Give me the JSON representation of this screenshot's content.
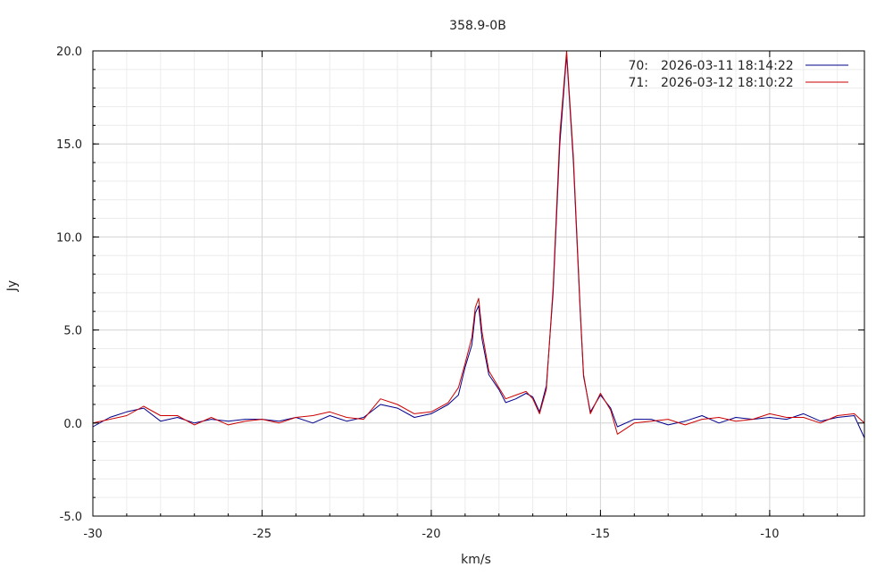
{
  "chart_data": {
    "type": "line",
    "title": "358.9-0B",
    "xlabel": "km/s",
    "ylabel": "Jy",
    "xlim": [
      -30,
      -7.2
    ],
    "ylim": [
      -5,
      20
    ],
    "x_ticks": [
      -30,
      -25,
      -20,
      -15,
      -10
    ],
    "x_tick_labels": [
      "-30",
      "-25",
      "-20",
      "-15",
      "-10"
    ],
    "y_ticks": [
      -5,
      0,
      5,
      10,
      15,
      20
    ],
    "y_tick_labels": [
      "-5.0",
      "0.0",
      "5.0",
      "10.0",
      "15.0",
      "20.0"
    ],
    "grid": true,
    "legend_position": "top-right",
    "series": [
      {
        "name": "2026-03-11 18:14:22",
        "index_label": "70:",
        "color": "#00008b",
        "points": [
          [
            -30.0,
            -0.2
          ],
          [
            -29.5,
            0.3
          ],
          [
            -29.0,
            0.6
          ],
          [
            -28.5,
            0.8
          ],
          [
            -28.0,
            0.1
          ],
          [
            -27.5,
            0.3
          ],
          [
            -27.0,
            0.0
          ],
          [
            -26.5,
            0.2
          ],
          [
            -26.0,
            0.1
          ],
          [
            -25.5,
            0.2
          ],
          [
            -25.0,
            0.2
          ],
          [
            -24.5,
            0.1
          ],
          [
            -24.0,
            0.3
          ],
          [
            -23.5,
            0.0
          ],
          [
            -23.0,
            0.4
          ],
          [
            -22.5,
            0.1
          ],
          [
            -22.0,
            0.3
          ],
          [
            -21.5,
            1.0
          ],
          [
            -21.0,
            0.8
          ],
          [
            -20.5,
            0.3
          ],
          [
            -20.0,
            0.5
          ],
          [
            -19.5,
            1.0
          ],
          [
            -19.2,
            1.5
          ],
          [
            -19.0,
            3.0
          ],
          [
            -18.8,
            4.2
          ],
          [
            -18.7,
            5.9
          ],
          [
            -18.6,
            6.3
          ],
          [
            -18.5,
            4.5
          ],
          [
            -18.3,
            2.6
          ],
          [
            -18.0,
            1.8
          ],
          [
            -17.8,
            1.1
          ],
          [
            -17.5,
            1.3
          ],
          [
            -17.2,
            1.6
          ],
          [
            -17.0,
            1.4
          ],
          [
            -16.8,
            0.6
          ],
          [
            -16.6,
            2.0
          ],
          [
            -16.4,
            7.0
          ],
          [
            -16.2,
            15.0
          ],
          [
            -16.0,
            19.8
          ],
          [
            -15.8,
            14.0
          ],
          [
            -15.6,
            6.0
          ],
          [
            -15.5,
            2.5
          ],
          [
            -15.3,
            0.6
          ],
          [
            -15.0,
            1.5
          ],
          [
            -14.7,
            0.8
          ],
          [
            -14.5,
            -0.2
          ],
          [
            -14.0,
            0.2
          ],
          [
            -13.5,
            0.2
          ],
          [
            -13.0,
            -0.1
          ],
          [
            -12.5,
            0.1
          ],
          [
            -12.0,
            0.4
          ],
          [
            -11.5,
            0.0
          ],
          [
            -11.0,
            0.3
          ],
          [
            -10.5,
            0.2
          ],
          [
            -10.0,
            0.3
          ],
          [
            -9.5,
            0.2
          ],
          [
            -9.0,
            0.5
          ],
          [
            -8.5,
            0.1
          ],
          [
            -8.0,
            0.3
          ],
          [
            -7.5,
            0.4
          ],
          [
            -7.2,
            -0.8
          ]
        ]
      },
      {
        "name": "2026-03-12 18:10:22",
        "index_label": "71:",
        "color": "#cc0000",
        "points": [
          [
            -30.0,
            0.0
          ],
          [
            -29.5,
            0.2
          ],
          [
            -29.0,
            0.4
          ],
          [
            -28.5,
            0.9
          ],
          [
            -28.0,
            0.4
          ],
          [
            -27.5,
            0.4
          ],
          [
            -27.0,
            -0.1
          ],
          [
            -26.5,
            0.3
          ],
          [
            -26.0,
            -0.1
          ],
          [
            -25.5,
            0.1
          ],
          [
            -25.0,
            0.2
          ],
          [
            -24.5,
            0.0
          ],
          [
            -24.0,
            0.3
          ],
          [
            -23.5,
            0.4
          ],
          [
            -23.0,
            0.6
          ],
          [
            -22.5,
            0.3
          ],
          [
            -22.0,
            0.2
          ],
          [
            -21.5,
            1.3
          ],
          [
            -21.0,
            1.0
          ],
          [
            -20.5,
            0.5
          ],
          [
            -20.0,
            0.6
          ],
          [
            -19.5,
            1.1
          ],
          [
            -19.2,
            1.9
          ],
          [
            -19.0,
            3.2
          ],
          [
            -18.8,
            4.6
          ],
          [
            -18.7,
            6.2
          ],
          [
            -18.6,
            6.7
          ],
          [
            -18.5,
            4.9
          ],
          [
            -18.3,
            2.8
          ],
          [
            -18.0,
            1.9
          ],
          [
            -17.8,
            1.3
          ],
          [
            -17.5,
            1.5
          ],
          [
            -17.2,
            1.7
          ],
          [
            -17.0,
            1.3
          ],
          [
            -16.8,
            0.5
          ],
          [
            -16.6,
            1.8
          ],
          [
            -16.4,
            7.3
          ],
          [
            -16.2,
            15.5
          ],
          [
            -16.0,
            20.0
          ],
          [
            -15.8,
            14.3
          ],
          [
            -15.6,
            6.2
          ],
          [
            -15.5,
            2.6
          ],
          [
            -15.3,
            0.5
          ],
          [
            -15.0,
            1.6
          ],
          [
            -14.7,
            0.7
          ],
          [
            -14.5,
            -0.6
          ],
          [
            -14.0,
            0.0
          ],
          [
            -13.5,
            0.1
          ],
          [
            -13.0,
            0.2
          ],
          [
            -12.5,
            -0.1
          ],
          [
            -12.0,
            0.2
          ],
          [
            -11.5,
            0.3
          ],
          [
            -11.0,
            0.1
          ],
          [
            -10.5,
            0.2
          ],
          [
            -10.0,
            0.5
          ],
          [
            -9.5,
            0.3
          ],
          [
            -9.0,
            0.3
          ],
          [
            -8.5,
            0.0
          ],
          [
            -8.0,
            0.4
          ],
          [
            -7.5,
            0.5
          ],
          [
            -7.2,
            0.0
          ]
        ]
      }
    ]
  }
}
